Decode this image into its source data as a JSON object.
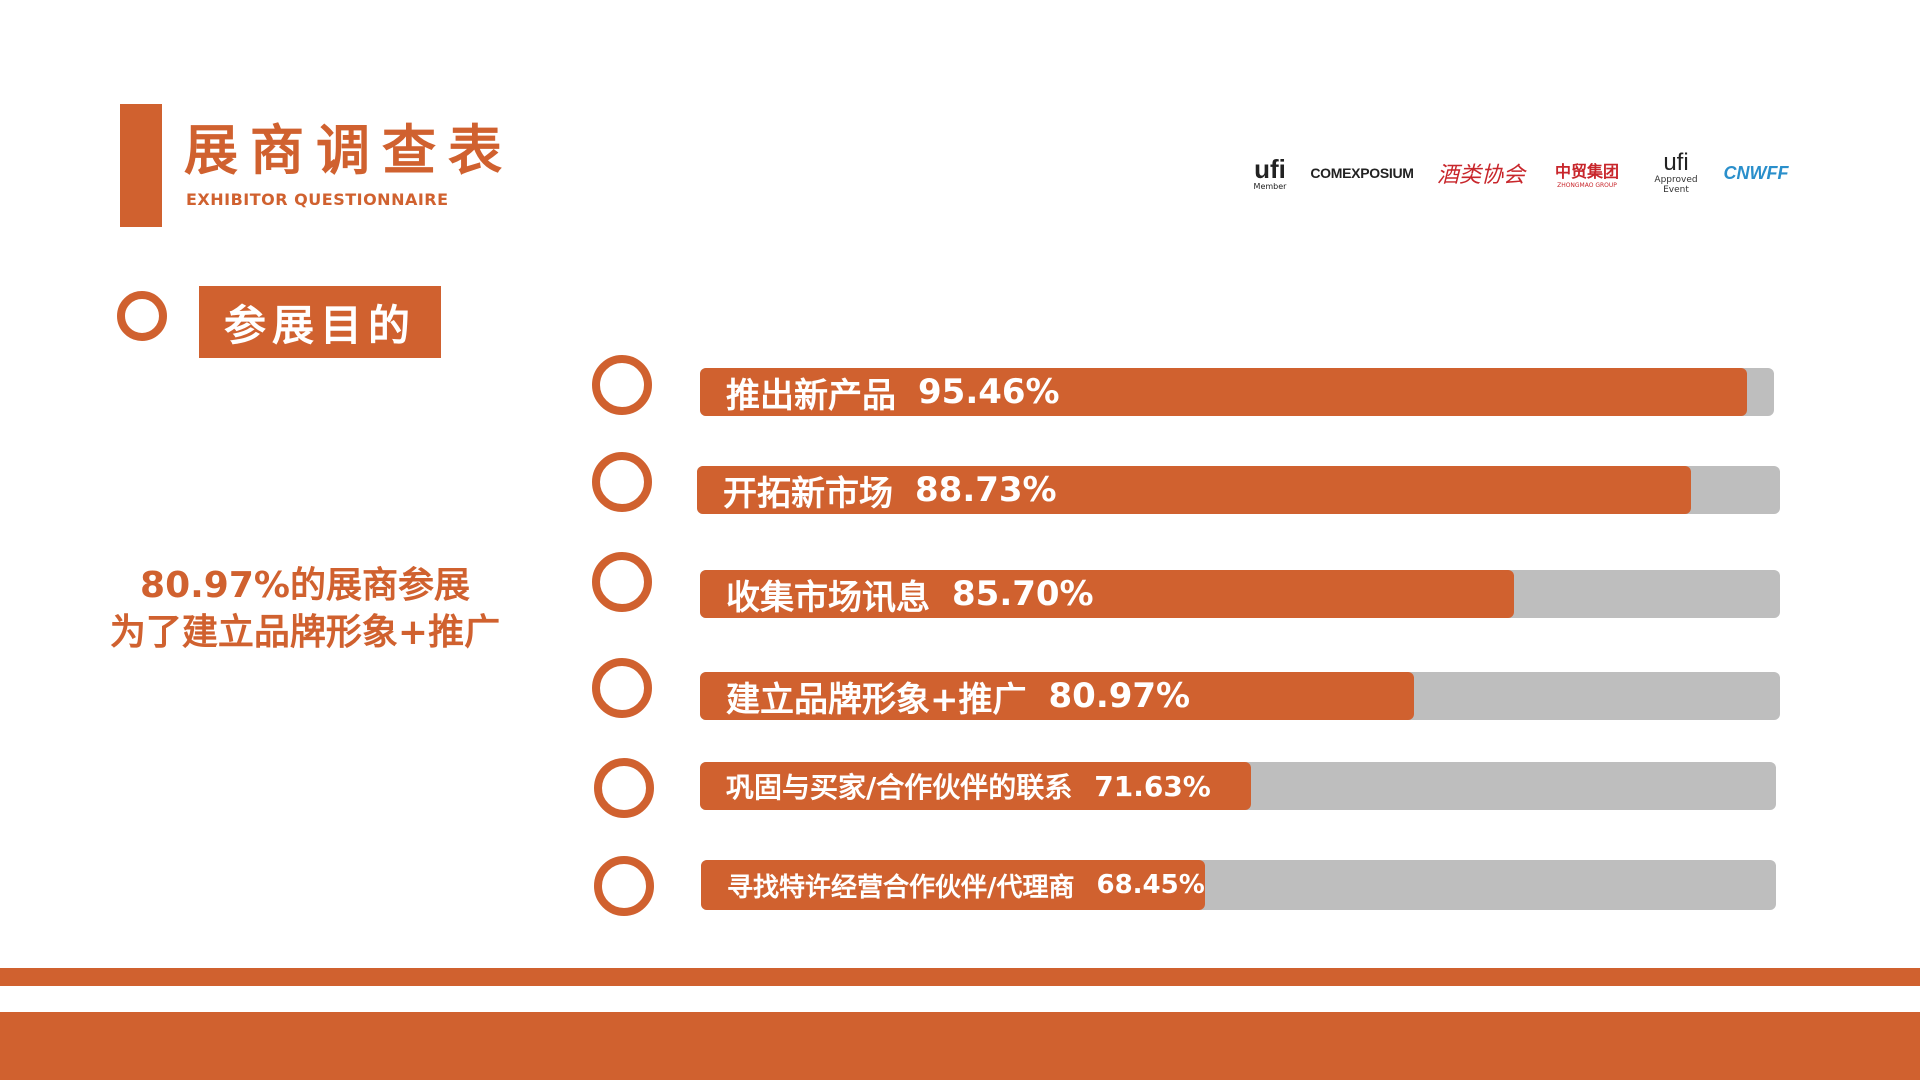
{
  "header": {
    "title": "展商调查表",
    "subtitle": "EXHIBITOR QUESTIONNAIRE"
  },
  "logos": [
    {
      "name": "ufi",
      "caption": "Member"
    },
    {
      "name": "COMEXPOSIUM"
    },
    {
      "name": "酒类协会"
    },
    {
      "name": "中贸集团",
      "caption": "ZHONGMAO GROUP"
    },
    {
      "name": "ufi",
      "caption": "Approved Event"
    },
    {
      "name": "CNWFF"
    }
  ],
  "section": {
    "label": "参展目的"
  },
  "summary": {
    "line1": "80.97%的展商参展",
    "line2": "为了建立品牌形象+推广"
  },
  "colors": {
    "accent": "#D0612F",
    "track": "#BEBEBE"
  },
  "chart_data": {
    "type": "bar",
    "orientation": "horizontal",
    "categories": [
      "推出新产品",
      "开拓新市场",
      "收集市场讯息",
      "建立品牌形象+推广",
      "巩固与买家/合作伙伴的联系",
      "寻找特许经营合作伙伴/代理商"
    ],
    "values": [
      95.46,
      88.73,
      85.7,
      80.97,
      71.63,
      68.45
    ],
    "labels": [
      "95.46%",
      "88.73%",
      "85.70%",
      "80.97%",
      "71.63%",
      "68.45%"
    ],
    "xlim": [
      0,
      100
    ]
  }
}
